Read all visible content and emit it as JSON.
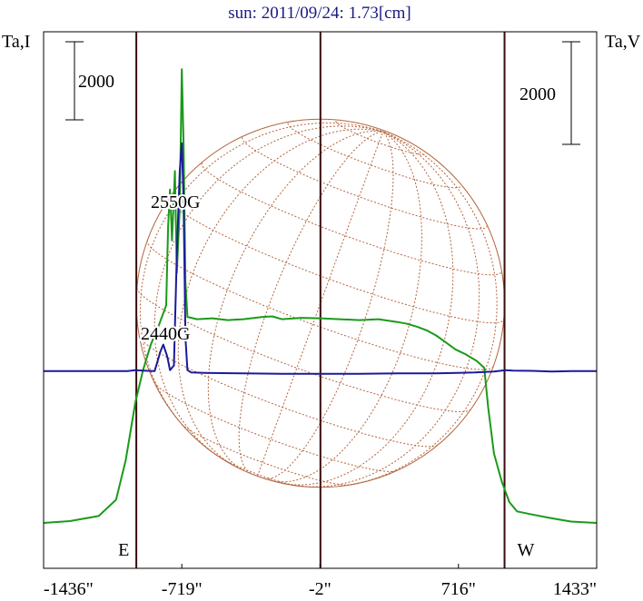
{
  "chart_data": {
    "type": "line",
    "title": "sun: 2011/09/24: 1.73[cm]",
    "ylabel_left": "Ta,I",
    "ylabel_right": "Ta,V",
    "xlim": [
      -1436,
      1433
    ],
    "x_ticks": [
      {
        "value": -1436,
        "label": "-1436\""
      },
      {
        "value": -719,
        "label": "-719\""
      },
      {
        "value": -2,
        "label": "-2\""
      },
      {
        "value": 716,
        "label": "716\""
      },
      {
        "value": 1433,
        "label": "1433\""
      }
    ],
    "limb_markers": [
      {
        "value": -955,
        "label": "E"
      },
      {
        "value": 955,
        "label": "W"
      }
    ],
    "scale_bars": [
      {
        "side": "left",
        "label": "2000"
      },
      {
        "side": "right",
        "label": "2000"
      }
    ],
    "annotations": [
      {
        "text": "2550G",
        "x": -719,
        "series": "Stokes V"
      },
      {
        "text": "2440G",
        "x": -790,
        "series": "Stokes I"
      }
    ],
    "disk": {
      "radius_arcsec": 955,
      "color": "#b4643c",
      "grid": "heliographic, dotted"
    },
    "series": [
      {
        "color": "#1a9a1a",
        "points": [
          [
            -1436,
            0
          ],
          [
            -1300,
            40
          ],
          [
            -1150,
            150
          ],
          [
            -1060,
            500
          ],
          [
            -1010,
            1350
          ],
          [
            -960,
            2600
          ],
          [
            -920,
            3300
          ],
          [
            -880,
            3850
          ],
          [
            -840,
            4250
          ],
          [
            -800,
            4700
          ],
          [
            -790,
            6400
          ],
          [
            -780,
            7200
          ],
          [
            -770,
            6100
          ],
          [
            -755,
            7600
          ],
          [
            -745,
            5400
          ],
          [
            -730,
            6800
          ],
          [
            -719,
            9800
          ],
          [
            -710,
            8200
          ],
          [
            -700,
            5200
          ],
          [
            -690,
            4450
          ],
          [
            -640,
            4400
          ],
          [
            -560,
            4420
          ],
          [
            -480,
            4380
          ],
          [
            -400,
            4400
          ],
          [
            -300,
            4450
          ],
          [
            -250,
            4460
          ],
          [
            -200,
            4400
          ],
          [
            -100,
            4430
          ],
          [
            0,
            4420
          ],
          [
            100,
            4400
          ],
          [
            200,
            4380
          ],
          [
            300,
            4400
          ],
          [
            400,
            4340
          ],
          [
            450,
            4300
          ],
          [
            500,
            4240
          ],
          [
            550,
            4160
          ],
          [
            600,
            4050
          ],
          [
            650,
            3900
          ],
          [
            700,
            3750
          ],
          [
            750,
            3650
          ],
          [
            810,
            3500
          ],
          [
            850,
            3350
          ],
          [
            870,
            2500
          ],
          [
            900,
            1500
          ],
          [
            940,
            900
          ],
          [
            980,
            450
          ],
          [
            1020,
            250
          ],
          [
            1100,
            180
          ],
          [
            1200,
            100
          ],
          [
            1300,
            30
          ],
          [
            1433,
            0
          ]
        ]
      },
      {
        "color": "#1a1a99",
        "points": [
          [
            -1436,
            3280
          ],
          [
            -1200,
            3280
          ],
          [
            -1000,
            3280
          ],
          [
            -960,
            3300
          ],
          [
            -920,
            3290
          ],
          [
            -860,
            3280
          ],
          [
            -830,
            3700
          ],
          [
            -815,
            3850
          ],
          [
            -795,
            3600
          ],
          [
            -780,
            3300
          ],
          [
            -760,
            3400
          ],
          [
            -745,
            5800
          ],
          [
            -730,
            7600
          ],
          [
            -719,
            8200
          ],
          [
            -710,
            7000
          ],
          [
            -700,
            4000
          ],
          [
            -690,
            3300
          ],
          [
            -670,
            3250
          ],
          [
            -600,
            3240
          ],
          [
            -400,
            3230
          ],
          [
            -200,
            3220
          ],
          [
            0,
            3220
          ],
          [
            200,
            3220
          ],
          [
            400,
            3230
          ],
          [
            600,
            3230
          ],
          [
            800,
            3250
          ],
          [
            900,
            3270
          ],
          [
            960,
            3300
          ],
          [
            1000,
            3290
          ],
          [
            1100,
            3285
          ],
          [
            1200,
            3270
          ],
          [
            1300,
            3280
          ],
          [
            1433,
            3280
          ]
        ]
      }
    ]
  }
}
